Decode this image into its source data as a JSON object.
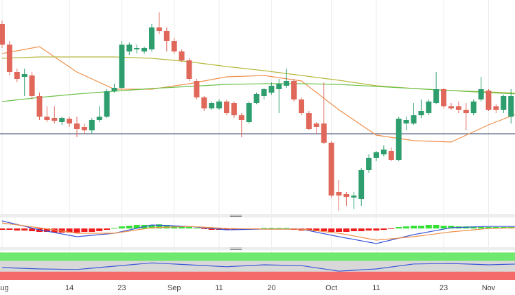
{
  "chart_data": [
    {
      "type": "candlestick",
      "categories": [
        "Aug",
        null,
        null,
        null,
        null,
        null,
        null,
        null,
        null,
        "14",
        null,
        null,
        null,
        null,
        null,
        null,
        "23",
        null,
        null,
        null,
        null,
        null,
        null,
        "Sep",
        null,
        null,
        null,
        null,
        null,
        "11",
        null,
        null,
        null,
        null,
        null,
        null,
        "20",
        null,
        null,
        null,
        null,
        null,
        null,
        null,
        "Oct",
        null,
        null,
        null,
        null,
        null,
        "11",
        null,
        null,
        null,
        null,
        null,
        null,
        null,
        null,
        "23",
        null,
        null,
        null,
        null,
        null,
        "Nov",
        null,
        null,
        null,
        null
      ],
      "open": [
        275,
        245,
        205,
        198,
        200,
        170,
        140,
        138,
        132,
        137,
        130,
        125,
        120,
        135,
        140,
        177,
        182,
        235,
        238,
        235,
        238,
        270,
        265,
        250,
        235,
        222,
        192,
        168,
        152,
        152,
        162,
        160,
        142,
        132,
        160,
        170,
        175,
        180,
        185,
        192,
        165,
        145,
        130,
        130,
        102,
        30,
        27,
        22,
        20,
        62,
        80,
        85,
        90,
        77,
        130,
        130,
        142,
        145,
        160,
        180,
        155,
        155,
        150,
        145,
        165,
        178,
        155,
        150,
        140,
        170
      ],
      "high": [
        280,
        250,
        210,
        210,
        205,
        175,
        155,
        155,
        140,
        140,
        140,
        130,
        138,
        155,
        180,
        188,
        250,
        248,
        245,
        242,
        275,
        292,
        270,
        255,
        238,
        225,
        195,
        170,
        162,
        165,
        165,
        162,
        145,
        162,
        175,
        182,
        190,
        195,
        210,
        195,
        168,
        148,
        132,
        190,
        104,
        48,
        30,
        30,
        65,
        85,
        90,
        98,
        95,
        140,
        140,
        160,
        165,
        165,
        205,
        182,
        160,
        162,
        160,
        165,
        198,
        180,
        158,
        172,
        180,
        175
      ],
      "low": [
        240,
        200,
        190,
        170,
        165,
        135,
        132,
        130,
        128,
        125,
        110,
        115,
        115,
        132,
        138,
        175,
        180,
        230,
        232,
        232,
        235,
        260,
        235,
        232,
        220,
        192,
        165,
        148,
        150,
        150,
        142,
        138,
        110,
        130,
        158,
        165,
        172,
        145,
        182,
        162,
        142,
        120,
        115,
        100,
        22,
        3,
        10,
        5,
        10,
        58,
        75,
        82,
        75,
        75,
        120,
        128,
        138,
        142,
        158,
        152,
        150,
        145,
        120,
        142,
        162,
        148,
        145,
        145,
        130,
        155
      ],
      "close": [
        245,
        205,
        195,
        202,
        170,
        140,
        135,
        134,
        138,
        130,
        122,
        120,
        135,
        140,
        177,
        182,
        245,
        245,
        240,
        240,
        270,
        265,
        250,
        235,
        222,
        195,
        168,
        152,
        160,
        162,
        145,
        142,
        135,
        160,
        173,
        180,
        185,
        188,
        192,
        165,
        145,
        122,
        125,
        102,
        25,
        25,
        23,
        25,
        62,
        80,
        88,
        92,
        77,
        137,
        135,
        142,
        148,
        162,
        180,
        155,
        152,
        150,
        145,
        162,
        180,
        150,
        150,
        170,
        170,
        160
      ],
      "up_color": "#2f9e6e",
      "down_color": "#e0685a",
      "ylim": [
        0,
        310
      ],
      "hline": 115,
      "hline_color": "#2c3e66",
      "lines": [
        {
          "color": "#f0904a",
          "x": [
            0,
            5,
            10,
            15,
            20,
            25,
            30,
            35,
            40,
            45,
            50,
            55,
            60,
            65,
            69
          ],
          "values": [
            232,
            242,
            205,
            180,
            180,
            188,
            198,
            200,
            192,
            150,
            113,
            105,
            103,
            128,
            145
          ]
        },
        {
          "color": "#b5b83a",
          "x": [
            0,
            5,
            10,
            15,
            20,
            25,
            30,
            35,
            40,
            45,
            50,
            55,
            60,
            65,
            69
          ],
          "values": [
            225,
            227,
            227,
            227,
            225,
            220,
            213,
            207,
            200,
            193,
            185,
            181,
            178,
            176,
            174
          ]
        },
        {
          "color": "#6cc24a",
          "x": [
            0,
            5,
            10,
            15,
            20,
            25,
            30,
            35,
            40,
            45,
            50,
            55,
            60,
            65,
            69
          ],
          "values": [
            162,
            168,
            173,
            177,
            181,
            184,
            187,
            188,
            188,
            187,
            184,
            181,
            178,
            175,
            173
          ]
        }
      ]
    },
    {
      "type": "macd",
      "values": [
        -2,
        -2,
        -3,
        -3,
        -4,
        -5,
        -5,
        -6,
        -6,
        -6,
        -6,
        -5,
        -5,
        -4,
        -2,
        1,
        3,
        4,
        5,
        5,
        5,
        6,
        5,
        4,
        3,
        2,
        1,
        -1,
        -2,
        -2,
        -2,
        -2,
        -2,
        -1,
        -1,
        1,
        1,
        1,
        1,
        -2,
        -3,
        -3,
        -4,
        -4,
        -5,
        -5,
        -5,
        -4,
        -4,
        -3,
        -3,
        -2,
        -1,
        2,
        3,
        4,
        4,
        5,
        5,
        4,
        4,
        3,
        3,
        3,
        3,
        2,
        2,
        2,
        2,
        2
      ],
      "up_color": "#33e033",
      "down_color": "#ee1c1c",
      "ylim": [
        -25,
        15
      ],
      "lines": [
        {
          "color": "#3a57d8",
          "x": [
            0,
            5,
            10,
            15,
            20,
            25,
            30,
            35,
            40,
            45,
            50,
            55,
            60,
            65,
            69
          ],
          "values": [
            11,
            -2,
            -12,
            -7,
            5,
            3,
            -2,
            -1,
            -1,
            -12,
            -22,
            -9,
            1,
            3,
            3
          ]
        },
        {
          "color": "#f0904a",
          "x": [
            0,
            5,
            10,
            15,
            20,
            25,
            30,
            35,
            40,
            45,
            50,
            55,
            60,
            65,
            69
          ],
          "values": [
            8,
            1,
            -7,
            -7,
            1,
            3,
            0,
            -1,
            -1,
            -7,
            -17,
            -12,
            -5,
            0,
            1
          ]
        }
      ]
    },
    {
      "type": "rsi",
      "ylim": [
        0,
        100
      ],
      "bands": [
        {
          "from": 70,
          "to": 100,
          "color": "#6ee86e"
        },
        {
          "from": 0,
          "to": 30,
          "color": "#f46a6a"
        }
      ],
      "lines": [
        {
          "color": "#3a57d8",
          "x": [
            0,
            5,
            10,
            15,
            20,
            25,
            30,
            35,
            40,
            45,
            50,
            55,
            60,
            65,
            69
          ],
          "values": [
            45,
            40,
            38,
            50,
            62,
            55,
            48,
            55,
            52,
            32,
            40,
            58,
            60,
            55,
            58
          ]
        }
      ]
    }
  ]
}
